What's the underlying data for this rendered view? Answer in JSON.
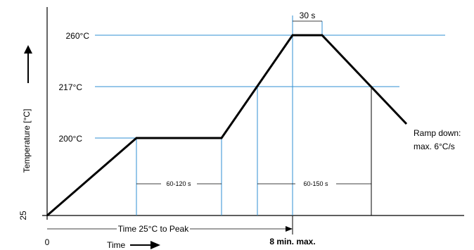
{
  "y_axis_label": "Temperature [°C]",
  "x_axis_label": "Time",
  "temperature_labels": {
    "t25": "25",
    "t200": "200°C",
    "t217": "217°C",
    "t260": "260°C"
  },
  "x_zero_label": "0",
  "peak_duration_label": "30 s",
  "soak_label": "60-120 s",
  "above_liquidus_label": "60-150 s",
  "time_to_peak_label": "Time 25°C to Peak",
  "max_time_label": "8 min. max.",
  "ramp_down": {
    "line1": "Ramp down:",
    "line2": "max. 6°C/s"
  },
  "colors": {
    "guide_lines": "#2f8fd3",
    "profile": "#000000"
  }
}
